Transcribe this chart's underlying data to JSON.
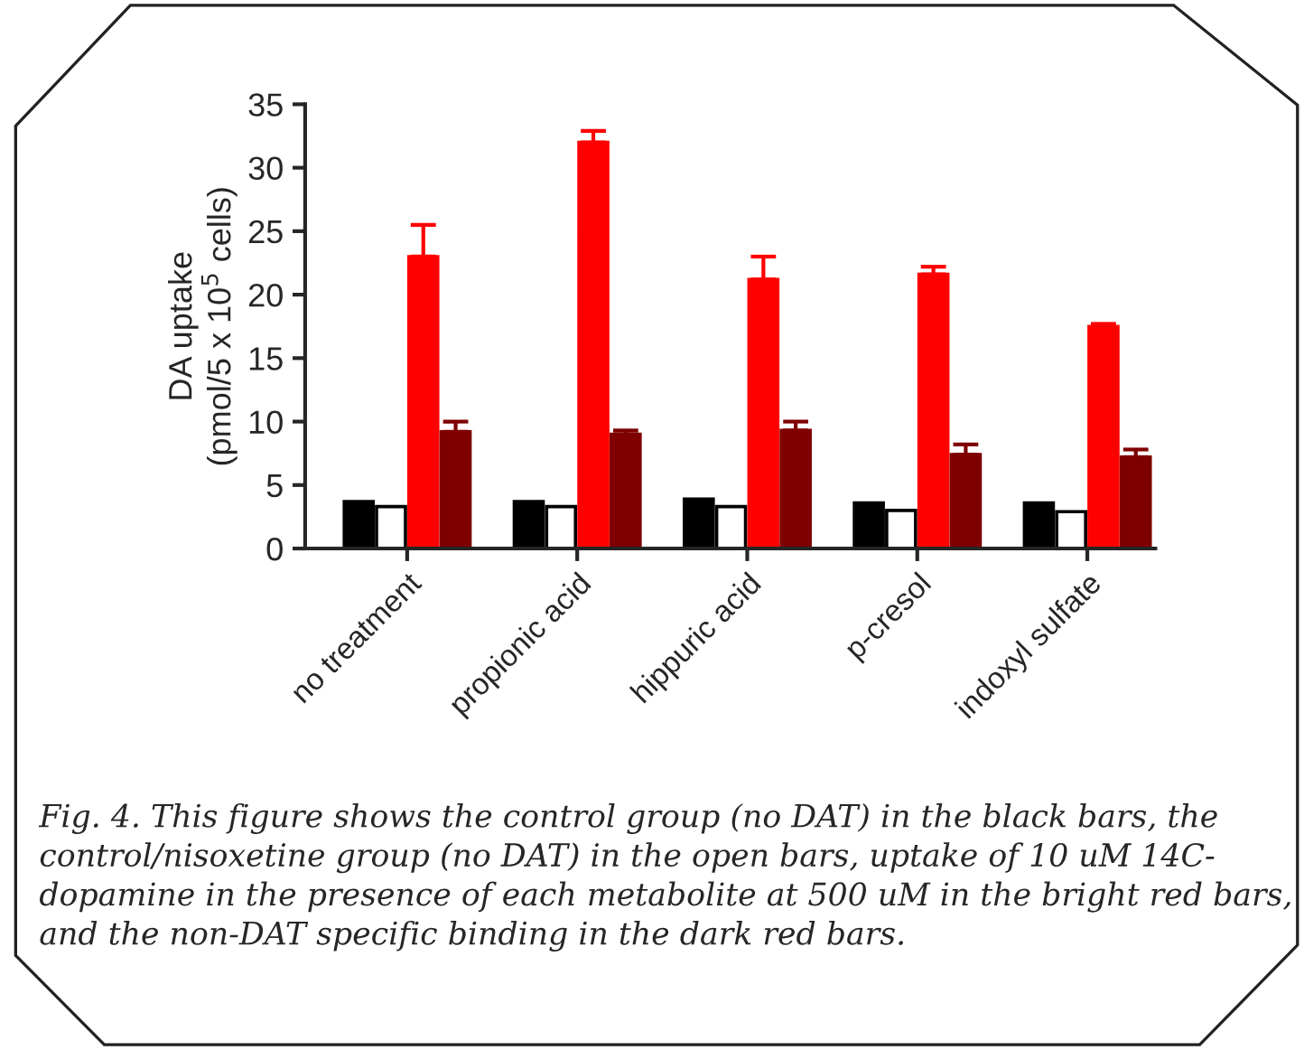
{
  "chart_data": {
    "type": "bar",
    "ylabel": "DA uptake\n(pmol/5 x 10$^{5}$ cells)",
    "categories": [
      "no treatment",
      "propionic acid",
      "hippuric acid",
      "p-cresol",
      "indoxyl sulfate"
    ],
    "series": [
      {
        "color": "#000000",
        "values": [
          3.7,
          3.7,
          3.9,
          3.6,
          3.6
        ]
      },
      {
        "color": "#ffffff",
        "values": [
          3.3,
          3.3,
          3.3,
          3.0,
          2.9
        ]
      },
      {
        "color": "#ff0000",
        "values": [
          23.0,
          32.0,
          21.2,
          21.6,
          17.5
        ],
        "errors": [
          2.5,
          0.9,
          1.8,
          0.6,
          0.2
        ]
      },
      {
        "color": "#7f0000",
        "values": [
          9.2,
          9.0,
          9.3,
          7.4,
          7.2
        ],
        "errors": [
          0.8,
          0.3,
          0.7,
          0.8,
          0.6
        ]
      }
    ],
    "ylim": [
      0,
      35
    ],
    "yticks": [
      0,
      5,
      10,
      15,
      20,
      25,
      30,
      35
    ],
    "grid": false,
    "legend": false,
    "annotations": [
      "Fig. 4. This figure shows the control group (no DAT) in the black bars, the\ncontrol/nisoxetine group (no DAT) in the open bars, uptake of 10 uM 14C-\ndopamine in the presence of each metabolite at 500 uM in the bright red bars,\nand the non-DAT specific binding in the dark red bars."
    ]
  }
}
